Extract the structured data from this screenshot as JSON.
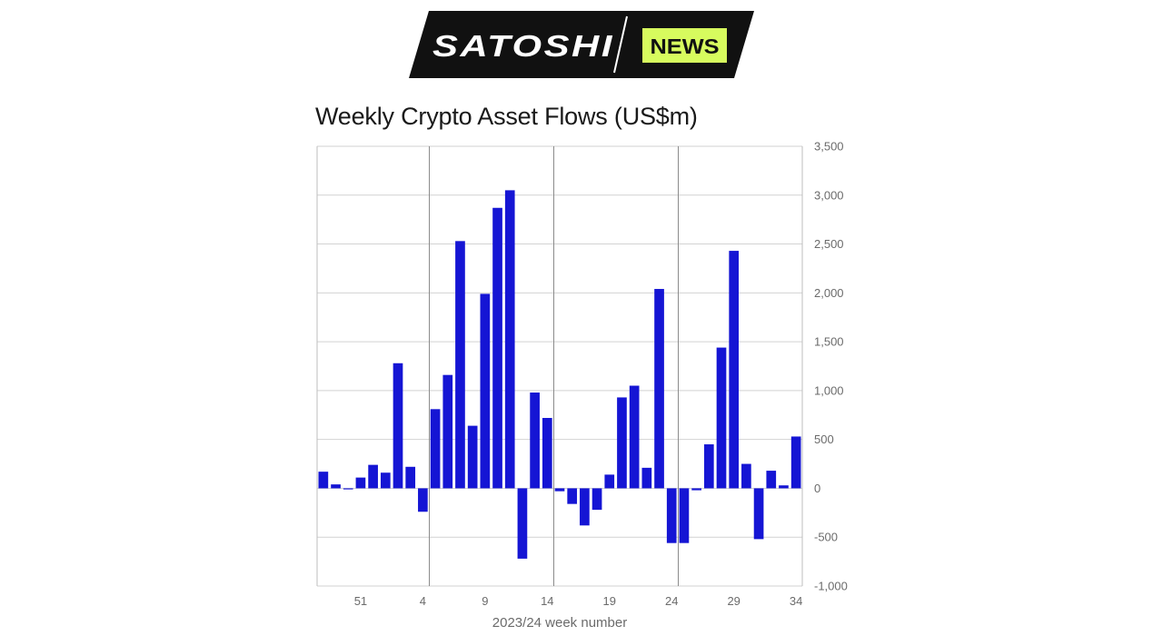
{
  "brand": {
    "name_part1": "SATOSHI",
    "name_part2": "NEWS",
    "bg_color": "#111111",
    "accent_color": "#d7fb5e"
  },
  "chart_data": {
    "type": "bar",
    "title": "Weekly Crypto Asset Flows (US$m)",
    "xlabel": "2023/24 week number",
    "ylabel": "",
    "ylim": [
      -1000,
      3500
    ],
    "yticks": [
      3500,
      3000,
      2500,
      2000,
      1500,
      1000,
      500,
      0,
      -500,
      -1000
    ],
    "ytick_labels": [
      "3,500",
      "3,000",
      "2,500",
      "2,000",
      "1,500",
      "1,000",
      "500",
      "0",
      "-500",
      "-1,000"
    ],
    "xtick_labels": [
      "51",
      "4",
      "9",
      "14",
      "19",
      "24",
      "29",
      "34"
    ],
    "grid": true,
    "bar_color": "#1515d4",
    "categories": [
      "48",
      "49",
      "50",
      "51",
      "52",
      "1",
      "2",
      "3",
      "4",
      "5",
      "6",
      "7",
      "8",
      "9",
      "10",
      "11",
      "12",
      "13",
      "14",
      "15",
      "16",
      "17",
      "18",
      "19",
      "20",
      "21",
      "22",
      "23",
      "24",
      "25",
      "26",
      "27",
      "28",
      "29",
      "30",
      "31",
      "32",
      "33",
      "34"
    ],
    "values": [
      170,
      40,
      -10,
      110,
      240,
      160,
      1280,
      220,
      -240,
      810,
      1160,
      2530,
      640,
      1990,
      2870,
      3050,
      -720,
      980,
      720,
      -30,
      -160,
      -380,
      -220,
      140,
      930,
      1050,
      210,
      2040,
      -560,
      -560,
      -20,
      450,
      1440,
      2430,
      250,
      -520,
      180,
      30,
      530
    ]
  }
}
